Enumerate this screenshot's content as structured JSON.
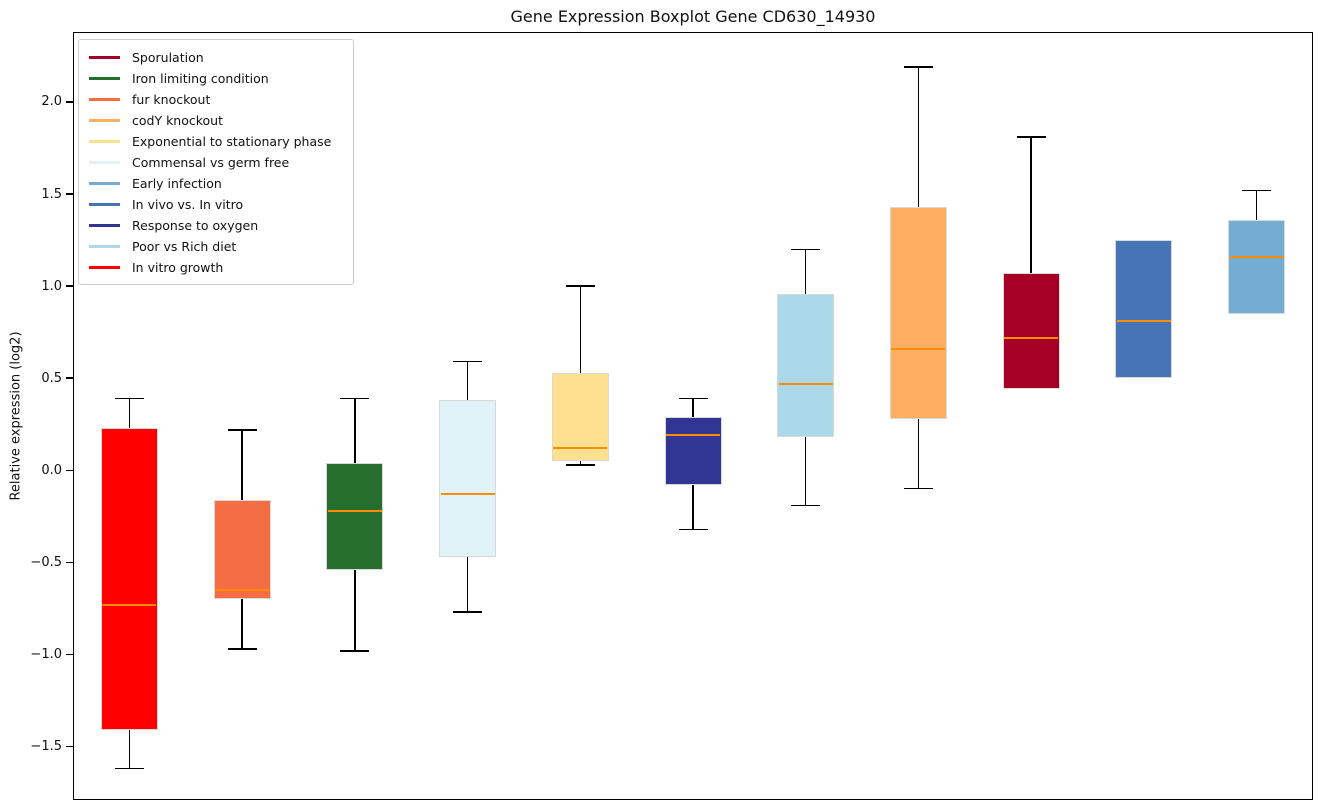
{
  "window": {
    "title": "Gene Expression Boxplot Gene CD630_14930"
  },
  "chart_data": {
    "type": "boxplot",
    "title": "Gene Expression Boxplot Gene CD630_14930",
    "ylabel": "Relative expression (log2)",
    "xlabel": "",
    "ylim": [
      -1.79,
      2.38
    ],
    "yticks": [
      2.0,
      1.5,
      1.0,
      0.5,
      0.0,
      -0.5,
      -1.0,
      -1.5
    ],
    "x_tick_labels": [],
    "grid": false,
    "median_color": "#ff8c00",
    "whisker_color": "#000000",
    "box_edge_color": "#d9d9d9",
    "legend": {
      "position": "upper-left",
      "items": [
        {
          "label": "Sporulation",
          "color": "#a50026"
        },
        {
          "label": "Iron limiting condition",
          "color": "#266e2b"
        },
        {
          "label": "fur knockout",
          "color": "#f46d43"
        },
        {
          "label": "codY knockout",
          "color": "#fdae61"
        },
        {
          "label": "Exponential to stationary phase",
          "color": "#fee090"
        },
        {
          "label": "Commensal vs germ free",
          "color": "#e0f3f8"
        },
        {
          "label": "Early infection",
          "color": "#74add1"
        },
        {
          "label": "In vivo vs. In vitro",
          "color": "#4575b4"
        },
        {
          "label": "Response to oxygen",
          "color": "#313695"
        },
        {
          "label": "Poor vs Rich diet",
          "color": "#abd9e9"
        },
        {
          "label": "In vitro growth",
          "color": "#ff0000"
        }
      ]
    },
    "series": [
      {
        "name": "In vitro growth",
        "color": "#ff0000",
        "whisker_low": -1.62,
        "q1": -1.41,
        "median": -0.73,
        "q3": 0.23,
        "whisker_high": 0.39
      },
      {
        "name": "fur knockout",
        "color": "#f46d43",
        "whisker_low": -0.97,
        "q1": -0.7,
        "median": -0.65,
        "q3": -0.16,
        "whisker_high": 0.22
      },
      {
        "name": "Iron limiting condition",
        "color": "#266e2b",
        "whisker_low": -0.98,
        "q1": -0.54,
        "median": -0.22,
        "q3": 0.04,
        "whisker_high": 0.39
      },
      {
        "name": "Commensal vs germ free",
        "color": "#e0f3f8",
        "whisker_low": -0.77,
        "q1": -0.47,
        "median": -0.13,
        "q3": 0.38,
        "whisker_high": 0.59
      },
      {
        "name": "Exponential to stationary phase",
        "color": "#fee090",
        "whisker_low": 0.03,
        "q1": 0.05,
        "median": 0.12,
        "q3": 0.53,
        "whisker_high": 1.0
      },
      {
        "name": "Response to oxygen",
        "color": "#313695",
        "whisker_low": -0.32,
        "q1": -0.08,
        "median": 0.19,
        "q3": 0.29,
        "whisker_high": 0.39
      },
      {
        "name": "Poor vs Rich diet",
        "color": "#abd9e9",
        "whisker_low": -0.19,
        "q1": 0.18,
        "median": 0.47,
        "q3": 0.96,
        "whisker_high": 1.2
      },
      {
        "name": "codY knockout",
        "color": "#fdae61",
        "whisker_low": -0.1,
        "q1": 0.28,
        "median": 0.66,
        "q3": 1.43,
        "whisker_high": 2.19
      },
      {
        "name": "Sporulation",
        "color": "#a50026",
        "whisker_low": 0.44,
        "q1": 0.44,
        "median": 0.72,
        "q3": 1.07,
        "whisker_high": 1.81
      },
      {
        "name": "In vivo vs. In vitro",
        "color": "#4575b4",
        "whisker_low": 0.5,
        "q1": 0.5,
        "median": 0.81,
        "q3": 1.25,
        "whisker_high": 1.25
      },
      {
        "name": "Early infection",
        "color": "#74add1",
        "whisker_low": 0.85,
        "q1": 0.85,
        "median": 1.16,
        "q3": 1.36,
        "whisker_high": 1.52
      }
    ]
  }
}
